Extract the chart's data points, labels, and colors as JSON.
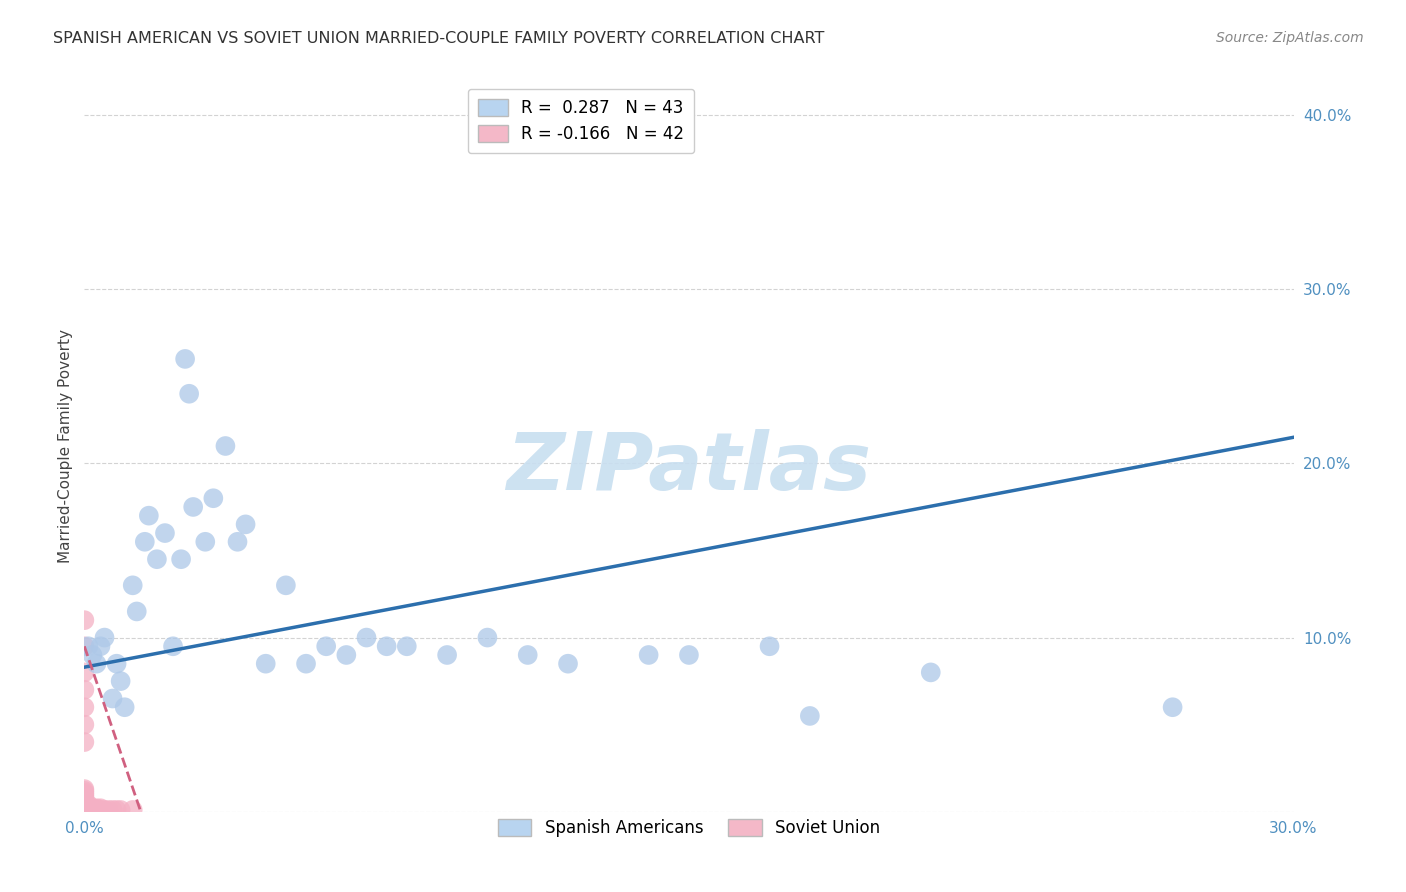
{
  "title": "SPANISH AMERICAN VS SOVIET UNION MARRIED-COUPLE FAMILY POVERTY CORRELATION CHART",
  "source": "Source: ZipAtlas.com",
  "ylabel": "Married-Couple Family Poverty",
  "xlim": [
    0,
    0.3
  ],
  "ylim": [
    0,
    0.42
  ],
  "xtick_positions": [
    0.0,
    0.05,
    0.1,
    0.15,
    0.2,
    0.25,
    0.3
  ],
  "xtick_labels": [
    "0.0%",
    "",
    "",
    "",
    "",
    "",
    "30.0%"
  ],
  "ytick_positions": [
    0.0,
    0.1,
    0.2,
    0.3,
    0.4
  ],
  "ytick_labels": [
    "",
    "10.0%",
    "20.0%",
    "30.0%",
    "40.0%"
  ],
  "blue_R": 0.287,
  "blue_N": 43,
  "pink_R": -0.166,
  "pink_N": 42,
  "blue_dot_color": "#adc8e8",
  "pink_dot_color": "#f4b0c4",
  "blue_line_color": "#2c6fad",
  "pink_line_color": "#d06080",
  "blue_line_y0": 0.083,
  "blue_line_y1": 0.215,
  "pink_line_y0": 0.095,
  "pink_line_y1": 0.0,
  "pink_line_x0": 0.0,
  "pink_line_x1": 0.014,
  "blue_x": [
    0.001,
    0.002,
    0.003,
    0.004,
    0.005,
    0.007,
    0.008,
    0.009,
    0.01,
    0.012,
    0.013,
    0.015,
    0.016,
    0.018,
    0.02,
    0.022,
    0.024,
    0.025,
    0.026,
    0.027,
    0.03,
    0.032,
    0.035,
    0.038,
    0.04,
    0.045,
    0.05,
    0.055,
    0.06,
    0.065,
    0.07,
    0.075,
    0.08,
    0.09,
    0.1,
    0.11,
    0.12,
    0.14,
    0.15,
    0.17,
    0.18,
    0.21,
    0.27
  ],
  "blue_y": [
    0.095,
    0.09,
    0.085,
    0.095,
    0.1,
    0.065,
    0.085,
    0.075,
    0.06,
    0.13,
    0.115,
    0.155,
    0.17,
    0.145,
    0.16,
    0.095,
    0.145,
    0.26,
    0.24,
    0.175,
    0.155,
    0.18,
    0.21,
    0.155,
    0.165,
    0.085,
    0.13,
    0.085,
    0.095,
    0.09,
    0.1,
    0.095,
    0.095,
    0.09,
    0.1,
    0.09,
    0.085,
    0.09,
    0.09,
    0.095,
    0.055,
    0.08,
    0.06
  ],
  "pink_x": [
    0.0,
    0.0,
    0.0,
    0.0,
    0.0,
    0.0,
    0.0,
    0.0,
    0.0,
    0.0,
    0.0,
    0.0,
    0.0,
    0.0,
    0.0,
    0.0,
    0.0,
    0.0,
    0.0,
    0.0,
    0.0,
    0.0,
    0.0,
    0.0,
    0.0,
    0.001,
    0.001,
    0.001,
    0.001,
    0.001,
    0.002,
    0.002,
    0.003,
    0.003,
    0.004,
    0.004,
    0.005,
    0.006,
    0.007,
    0.008,
    0.009,
    0.012
  ],
  "pink_y": [
    0.0,
    0.001,
    0.002,
    0.003,
    0.004,
    0.005,
    0.006,
    0.007,
    0.008,
    0.009,
    0.01,
    0.011,
    0.012,
    0.013,
    0.0,
    0.001,
    0.002,
    0.003,
    0.095,
    0.11,
    0.05,
    0.06,
    0.07,
    0.08,
    0.04,
    0.0,
    0.001,
    0.002,
    0.003,
    0.004,
    0.001,
    0.002,
    0.001,
    0.002,
    0.001,
    0.002,
    0.001,
    0.001,
    0.001,
    0.001,
    0.001,
    0.001
  ],
  "watermark_text": "ZIPatlas",
  "watermark_color": "#c8dff0",
  "background_color": "#ffffff",
  "grid_color": "#c8c8c8",
  "title_color": "#333333",
  "source_color": "#888888",
  "tick_color": "#5090c0",
  "ylabel_color": "#444444"
}
